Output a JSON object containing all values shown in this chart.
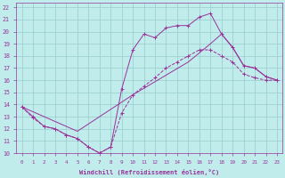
{
  "xlabel": "Windchill (Refroidissement éolien,°C)",
  "bg_color": "#c0ecec",
  "line_color": "#993399",
  "grid_color": "#99cccc",
  "xlim": [
    -0.5,
    23.5
  ],
  "ylim": [
    10,
    22.4
  ],
  "xticks": [
    0,
    1,
    2,
    3,
    4,
    5,
    6,
    7,
    8,
    9,
    10,
    11,
    12,
    13,
    14,
    15,
    16,
    17,
    18,
    19,
    20,
    21,
    22,
    23
  ],
  "yticks": [
    10,
    11,
    12,
    13,
    14,
    15,
    16,
    17,
    18,
    19,
    20,
    21,
    22
  ],
  "curve1_x": [
    0,
    1,
    2,
    3,
    4,
    5,
    6,
    7,
    8,
    9,
    10,
    11,
    12,
    13,
    14,
    15,
    16,
    17,
    18,
    19,
    20,
    21,
    22,
    23
  ],
  "curve1_y": [
    13.8,
    13.0,
    12.2,
    12.0,
    11.5,
    11.2,
    10.5,
    10.0,
    10.5,
    15.3,
    18.5,
    19.8,
    19.5,
    20.3,
    20.5,
    20.5,
    21.2,
    21.5,
    19.8,
    18.7,
    17.2,
    17.0,
    16.3,
    16.0
  ],
  "curve2_x": [
    0,
    1,
    2,
    3,
    4,
    5,
    6,
    7,
    8,
    9,
    10,
    11,
    12,
    13,
    14,
    15,
    16,
    17,
    18,
    19,
    20,
    21,
    22,
    23
  ],
  "curve2_y": [
    13.8,
    12.9,
    12.2,
    12.0,
    11.5,
    11.2,
    10.5,
    10.0,
    10.5,
    13.3,
    14.8,
    15.5,
    16.2,
    17.0,
    17.5,
    18.0,
    18.5,
    18.5,
    18.0,
    17.5,
    16.5,
    16.2,
    16.0,
    16.0
  ],
  "curve3_x": [
    0,
    5,
    10,
    15,
    17,
    18,
    19,
    20,
    21,
    22,
    23
  ],
  "curve3_y": [
    13.8,
    11.8,
    14.8,
    17.5,
    19.0,
    19.8,
    18.7,
    17.2,
    17.0,
    16.3,
    16.0
  ]
}
